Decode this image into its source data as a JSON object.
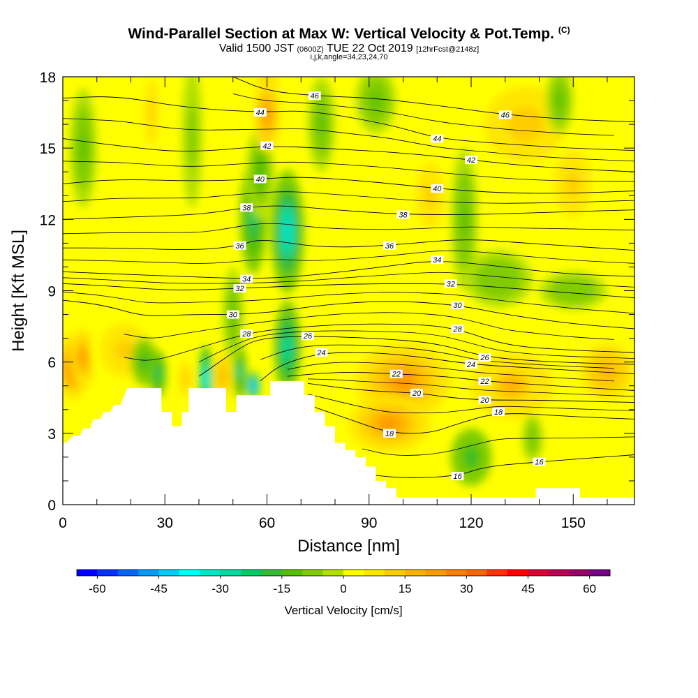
{
  "header": {
    "title": "Wind-Parallel Section at Max W: Vertical Velocity & Pot.Temp.",
    "title_mark": "(C)",
    "valid_prefix": "Valid 1500 JST",
    "valid_utc": "(0600Z)",
    "valid_date": "TUE 22 Oct 2019",
    "fcst": "[12hrFcst@2148z]",
    "indices": "i,j,k,angle=34,23,24,70"
  },
  "chart_data": {
    "type": "heatmap",
    "xlabel": "Distance [nm]",
    "ylabel": "Height [Kft MSL]",
    "xlim": [
      0,
      168
    ],
    "ylim": [
      0,
      18
    ],
    "x_ticks": [
      0,
      30,
      60,
      90,
      120,
      150
    ],
    "y_ticks": [
      0,
      3,
      6,
      9,
      12,
      15,
      18
    ],
    "colorbar": {
      "title": "Vertical Velocity [cm/s]",
      "min": -65,
      "max": 65,
      "step": 5,
      "tick_values": [
        -60,
        -45,
        -30,
        -15,
        0,
        15,
        30,
        45,
        60
      ],
      "tick_labels": [
        "-60",
        "-45",
        "-30",
        "-15",
        "0",
        "15",
        "30",
        "45",
        "60"
      ],
      "colors": [
        "#0000ff",
        "#0033ff",
        "#0066ff",
        "#0099ff",
        "#00ccff",
        "#00ffff",
        "#00e5c8",
        "#00d9a0",
        "#00cc66",
        "#33bb33",
        "#55c000",
        "#80cc00",
        "#b3e000",
        "#ffff00",
        "#ffe600",
        "#ffcc00",
        "#ffb300",
        "#ff9900",
        "#ff8000",
        "#ff6600",
        "#ff3300",
        "#ff0000",
        "#dd0033",
        "#bb0055",
        "#990066",
        "#770088"
      ]
    },
    "terrain_kft": [
      [
        0,
        2.6
      ],
      [
        1,
        2.6
      ],
      [
        3,
        2.9
      ],
      [
        5,
        2.9
      ],
      [
        6,
        3.2
      ],
      [
        8,
        3.2
      ],
      [
        9,
        3.6
      ],
      [
        11,
        3.6
      ],
      [
        12,
        3.9
      ],
      [
        14,
        3.9
      ],
      [
        15,
        4.2
      ],
      [
        17,
        4.2
      ],
      [
        18,
        4.6
      ],
      [
        19,
        4.9
      ],
      [
        29,
        4.9
      ],
      [
        29,
        3.9
      ],
      [
        32,
        3.9
      ],
      [
        32,
        3.3
      ],
      [
        35,
        3.3
      ],
      [
        35,
        3.9
      ],
      [
        37,
        3.9
      ],
      [
        37,
        4.9
      ],
      [
        48,
        4.9
      ],
      [
        48,
        3.9
      ],
      [
        51,
        3.9
      ],
      [
        51,
        4.6
      ],
      [
        61,
        4.6
      ],
      [
        61,
        5.2
      ],
      [
        71,
        5.2
      ],
      [
        71,
        4.6
      ],
      [
        74,
        4.6
      ],
      [
        74,
        3.9
      ],
      [
        77,
        3.9
      ],
      [
        77,
        3.3
      ],
      [
        80,
        3.3
      ],
      [
        80,
        2.6
      ],
      [
        83,
        2.6
      ],
      [
        83,
        2.3
      ],
      [
        86,
        2.3
      ],
      [
        86,
        2.0
      ],
      [
        89,
        2.0
      ],
      [
        89,
        1.6
      ],
      [
        92,
        1.6
      ],
      [
        92,
        1.0
      ],
      [
        95,
        1.0
      ],
      [
        95,
        0.7
      ],
      [
        98,
        0.7
      ],
      [
        98,
        0.3
      ],
      [
        139,
        0.3
      ],
      [
        139,
        0.7
      ],
      [
        152,
        0.7
      ],
      [
        152,
        0.3
      ],
      [
        168,
        0.3
      ]
    ],
    "theta_contours": [
      {
        "level": 16,
        "label": "16",
        "points": [
          [
            88,
            1.3
          ],
          [
            100,
            1.1
          ],
          [
            116,
            1.2
          ],
          [
            124,
            1.6
          ],
          [
            140,
            1.8
          ],
          [
            168,
            2.1
          ]
        ]
      },
      {
        "level": 18,
        "label": "18",
        "points": [
          [
            72,
            4.2
          ],
          [
            84,
            3.6
          ],
          [
            96,
            3.0
          ],
          [
            108,
            3.0
          ],
          [
            116,
            3.4
          ],
          [
            128,
            3.9
          ],
          [
            150,
            3.7
          ],
          [
            168,
            3.6
          ]
        ]
      },
      {
        "level": 20,
        "label": "20",
        "points": [
          [
            72,
            5.1
          ],
          [
            88,
            4.8
          ],
          [
            104,
            4.7
          ],
          [
            114,
            4.5
          ],
          [
            124,
            4.4
          ],
          [
            140,
            4.4
          ],
          [
            168,
            4.3
          ]
        ]
      },
      {
        "level": 22,
        "label": "22",
        "points": [
          [
            66,
            5.4
          ],
          [
            82,
            5.6
          ],
          [
            98,
            5.5
          ],
          [
            112,
            5.4
          ],
          [
            124,
            5.2
          ],
          [
            144,
            5.0
          ],
          [
            168,
            4.8
          ]
        ]
      },
      {
        "level": 24,
        "label": "24",
        "points": [
          [
            58,
            5.2
          ],
          [
            64,
            5.9
          ],
          [
            76,
            6.4
          ],
          [
            92,
            6.4
          ],
          [
            106,
            6.2
          ],
          [
            120,
            5.9
          ],
          [
            144,
            5.7
          ],
          [
            168,
            5.5
          ]
        ]
      },
      {
        "level": 26,
        "label": "26",
        "points": [
          [
            40,
            5.4
          ],
          [
            52,
            6.6
          ],
          [
            58,
            7.0
          ],
          [
            72,
            7.1
          ],
          [
            92,
            7.0
          ],
          [
            110,
            6.8
          ],
          [
            124,
            6.2
          ],
          [
            144,
            6.0
          ],
          [
            168,
            5.9
          ]
        ]
      },
      {
        "level": 28,
        "label": "28",
        "points": [
          [
            18,
            6.2
          ],
          [
            26,
            6.0
          ],
          [
            40,
            6.6
          ],
          [
            54,
            7.2
          ],
          [
            64,
            7.4
          ],
          [
            82,
            7.6
          ],
          [
            104,
            7.6
          ],
          [
            116,
            7.4
          ],
          [
            130,
            6.7
          ],
          [
            148,
            6.5
          ],
          [
            168,
            6.4
          ]
        ]
      },
      {
        "level": 30,
        "label": "30",
        "points": [
          [
            0,
            8.6
          ],
          [
            12,
            8.4
          ],
          [
            24,
            7.9
          ],
          [
            36,
            8.0
          ],
          [
            50,
            8.0
          ],
          [
            62,
            8.1
          ],
          [
            76,
            8.4
          ],
          [
            96,
            8.6
          ],
          [
            116,
            8.4
          ],
          [
            130,
            8.0
          ],
          [
            150,
            7.6
          ],
          [
            168,
            7.4
          ]
        ]
      },
      {
        "level": 32,
        "label": "32",
        "points": [
          [
            0,
            9.3
          ],
          [
            14,
            9.2
          ],
          [
            32,
            9.0
          ],
          [
            52,
            9.1
          ],
          [
            68,
            9.2
          ],
          [
            90,
            9.3
          ],
          [
            114,
            9.3
          ],
          [
            132,
            9.1
          ],
          [
            150,
            8.9
          ],
          [
            168,
            8.7
          ]
        ]
      },
      {
        "level": 34,
        "label": "34",
        "points": [
          [
            0,
            9.8
          ],
          [
            16,
            9.7
          ],
          [
            36,
            9.6
          ],
          [
            54,
            9.5
          ],
          [
            70,
            9.6
          ],
          [
            94,
            10.0
          ],
          [
            110,
            10.3
          ],
          [
            130,
            10.0
          ],
          [
            148,
            9.7
          ],
          [
            168,
            9.6
          ]
        ]
      },
      {
        "level": 36,
        "label": "36",
        "points": [
          [
            0,
            10.8
          ],
          [
            16,
            10.8
          ],
          [
            40,
            10.7
          ],
          [
            52,
            10.9
          ],
          [
            58,
            11.2
          ],
          [
            76,
            10.8
          ],
          [
            96,
            10.9
          ],
          [
            118,
            11.2
          ],
          [
            136,
            11.0
          ],
          [
            168,
            10.7
          ]
        ]
      },
      {
        "level": 38,
        "label": "38",
        "points": [
          [
            0,
            12.0
          ],
          [
            20,
            12.1
          ],
          [
            40,
            12.2
          ],
          [
            54,
            12.5
          ],
          [
            64,
            12.6
          ],
          [
            80,
            12.4
          ],
          [
            100,
            12.2
          ],
          [
            122,
            12.2
          ],
          [
            142,
            12.3
          ],
          [
            168,
            12.4
          ]
        ]
      },
      {
        "level": 40,
        "label": "40",
        "points": [
          [
            0,
            13.5
          ],
          [
            16,
            13.7
          ],
          [
            40,
            13.6
          ],
          [
            58,
            13.7
          ],
          [
            70,
            13.8
          ],
          [
            90,
            13.6
          ],
          [
            110,
            13.3
          ],
          [
            130,
            13.1
          ],
          [
            150,
            13.1
          ],
          [
            168,
            13.2
          ]
        ]
      },
      {
        "level": 42,
        "label": "42",
        "points": [
          [
            0,
            15.4
          ],
          [
            16,
            15.1
          ],
          [
            36,
            14.8
          ],
          [
            60,
            15.1
          ],
          [
            76,
            15.0
          ],
          [
            100,
            14.8
          ],
          [
            120,
            14.5
          ],
          [
            140,
            14.2
          ],
          [
            168,
            14.0
          ]
        ]
      },
      {
        "level": 44,
        "label": "44",
        "points": [
          [
            0,
            17.1
          ],
          [
            16,
            17.2
          ],
          [
            36,
            16.7
          ],
          [
            58,
            16.5
          ],
          [
            72,
            16.6
          ],
          [
            96,
            16.0
          ],
          [
            110,
            15.4
          ],
          [
            128,
            15.2
          ],
          [
            148,
            15.0
          ],
          [
            168,
            14.9
          ]
        ]
      },
      {
        "level": 46,
        "label": "46",
        "points": [
          [
            50,
            18.0
          ],
          [
            60,
            17.4
          ],
          [
            74,
            17.2
          ],
          [
            92,
            17.1
          ],
          [
            110,
            16.8
          ],
          [
            130,
            16.4
          ],
          [
            150,
            16.2
          ],
          [
            168,
            16.1
          ]
        ]
      }
    ],
    "velocity_field_cm_s": [
      {
        "x": 3,
        "y": 5.8,
        "w": 28,
        "rx": 5,
        "ry": 1.4
      },
      {
        "x": 6,
        "y": 6.2,
        "w": 18,
        "rx": 4,
        "ry": 1.2
      },
      {
        "x": 18,
        "y": 6.5,
        "w": 8,
        "rx": 10,
        "ry": 1.6
      },
      {
        "x": 24,
        "y": 6.0,
        "w": -16,
        "rx": 4,
        "ry": 1.0
      },
      {
        "x": 28,
        "y": 5.5,
        "w": -22,
        "rx": 2.5,
        "ry": 1.0
      },
      {
        "x": 36,
        "y": 5.3,
        "w": 12,
        "rx": 2,
        "ry": 0.8
      },
      {
        "x": 42,
        "y": 5.3,
        "w": -38,
        "rx": 2,
        "ry": 1.4
      },
      {
        "x": 47,
        "y": 5.4,
        "w": 16,
        "rx": 2.5,
        "ry": 1.0
      },
      {
        "x": 52,
        "y": 5.6,
        "w": -24,
        "rx": 2,
        "ry": 1.2
      },
      {
        "x": 56,
        "y": 5.0,
        "w": -50,
        "rx": 2,
        "ry": 0.6
      },
      {
        "x": 66,
        "y": 6.6,
        "w": -28,
        "rx": 4,
        "ry": 2.0
      },
      {
        "x": 66,
        "y": 11.5,
        "w": -32,
        "rx": 5,
        "ry": 2.6
      },
      {
        "x": 56,
        "y": 12.1,
        "w": -22,
        "rx": 4,
        "ry": 2.4
      },
      {
        "x": 58,
        "y": 14.0,
        "w": -12,
        "rx": 4,
        "ry": 2.0
      },
      {
        "x": 60,
        "y": 17.3,
        "w": 44,
        "rx": 3,
        "ry": 1.0
      },
      {
        "x": 60,
        "y": 16.4,
        "w": 22,
        "rx": 4,
        "ry": 1.6
      },
      {
        "x": 50,
        "y": 8.0,
        "w": -10,
        "rx": 3,
        "ry": 2.0
      },
      {
        "x": 100,
        "y": 5.2,
        "w": 18,
        "rx": 14,
        "ry": 1.6
      },
      {
        "x": 96,
        "y": 3.4,
        "w": 20,
        "rx": 12,
        "ry": 1.2
      },
      {
        "x": 132,
        "y": 5.0,
        "w": 14,
        "rx": 12,
        "ry": 1.4
      },
      {
        "x": 160,
        "y": 5.6,
        "w": 16,
        "rx": 8,
        "ry": 1.2
      },
      {
        "x": 120,
        "y": 2.0,
        "w": -16,
        "rx": 6,
        "ry": 1.2
      },
      {
        "x": 138,
        "y": 2.8,
        "w": -8,
        "rx": 3,
        "ry": 1.0
      },
      {
        "x": 118,
        "y": 12.0,
        "w": -10,
        "rx": 4,
        "ry": 3.0
      },
      {
        "x": 128,
        "y": 9.5,
        "w": -8,
        "rx": 10,
        "ry": 1.2
      },
      {
        "x": 150,
        "y": 9.0,
        "w": -8,
        "rx": 10,
        "ry": 0.8
      },
      {
        "x": 136,
        "y": 16.0,
        "w": 12,
        "rx": 12,
        "ry": 1.6
      },
      {
        "x": 108,
        "y": 13.0,
        "w": 10,
        "rx": 6,
        "ry": 2.0
      },
      {
        "x": 150,
        "y": 13.5,
        "w": 8,
        "rx": 8,
        "ry": 2.0
      },
      {
        "x": 6,
        "y": 15.0,
        "w": -10,
        "rx": 4,
        "ry": 2.5
      },
      {
        "x": 26,
        "y": 16.5,
        "w": 10,
        "rx": 3,
        "ry": 2.0
      },
      {
        "x": 38,
        "y": 15.5,
        "w": -6,
        "rx": 3,
        "ry": 3.0
      },
      {
        "x": 76,
        "y": 16.0,
        "w": -10,
        "rx": 4,
        "ry": 2.0
      },
      {
        "x": 92,
        "y": 17.0,
        "w": -10,
        "rx": 6,
        "ry": 1.4
      },
      {
        "x": 146,
        "y": 17.0,
        "w": -10,
        "rx": 4,
        "ry": 1.4
      }
    ]
  }
}
